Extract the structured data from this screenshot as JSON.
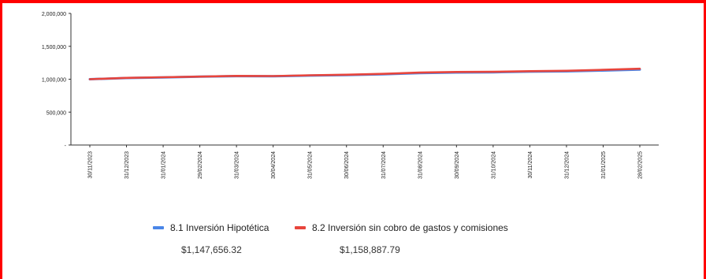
{
  "chart_data": {
    "type": "line",
    "categories": [
      "30/11/2023",
      "31/12/2023",
      "31/01/2024",
      "29/02/2024",
      "31/03/2024",
      "30/04/2024",
      "31/05/2024",
      "30/06/2024",
      "31/07/2024",
      "31/08/2024",
      "30/09/2024",
      "31/10/2024",
      "30/11/2024",
      "31/12/2024",
      "31/01/2025",
      "28/02/2025"
    ],
    "y_ticks": [
      "-",
      "500,000",
      "1,000,000",
      "1,500,000",
      "2,000,000"
    ],
    "ylim": [
      0,
      2000000
    ],
    "series": [
      {
        "name": "8.1 Inversión Hipotética",
        "color": "#4a86e8",
        "values": [
          1000000,
          1018000,
          1028000,
          1038000,
          1047000,
          1045000,
          1055000,
          1062000,
          1075000,
          1092000,
          1102000,
          1105000,
          1115000,
          1120000,
          1132000,
          1147656.32
        ]
      },
      {
        "name": "8.2 Inversión sin cobro de gastos y comisiones",
        "color": "#e8453c",
        "values": [
          1000000,
          1020000,
          1030000,
          1040000,
          1050000,
          1048000,
          1060000,
          1068000,
          1082000,
          1100000,
          1110000,
          1112000,
          1122000,
          1128000,
          1142000,
          1158887.79
        ]
      }
    ],
    "legend": {
      "position": "bottom"
    },
    "final_values": [
      "$1,147,656.32",
      "$1,158,887.79"
    ]
  }
}
